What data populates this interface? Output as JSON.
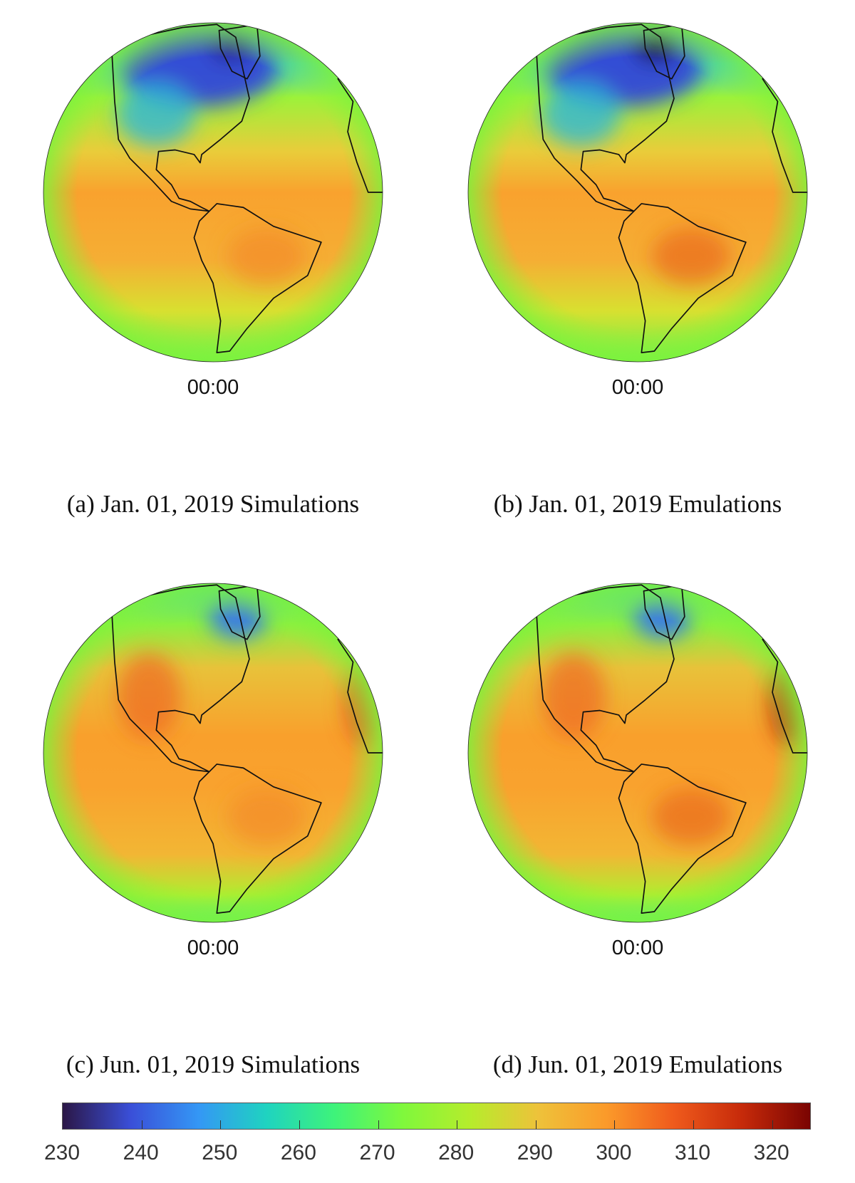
{
  "panels": [
    {
      "id": "a",
      "time": "00:00",
      "caption": "(a) Jan. 01, 2019 Simulations",
      "season": "january"
    },
    {
      "id": "b",
      "time": "00:00",
      "caption": "(b) Jan. 01, 2019 Emulations",
      "season": "january"
    },
    {
      "id": "c",
      "time": "00:00",
      "caption": "(c) Jun. 01, 2019 Simulations",
      "season": "june"
    },
    {
      "id": "d",
      "time": "00:00",
      "caption": "(d) Jun. 01, 2019 Emulations",
      "season": "june"
    }
  ],
  "colorbar": {
    "min": 230,
    "max": 325,
    "ticks": [
      "230",
      "240",
      "250",
      "260",
      "270",
      "280",
      "290",
      "300",
      "310",
      "320"
    ],
    "colormap": [
      "#2b1746",
      "#3a4fd8",
      "#3497f5",
      "#1fd3c0",
      "#3ef37a",
      "#7ff83c",
      "#b6ec2c",
      "#eec23a",
      "#fb9a2a",
      "#ef5a1c",
      "#c62a0a",
      "#7a0402"
    ]
  }
}
